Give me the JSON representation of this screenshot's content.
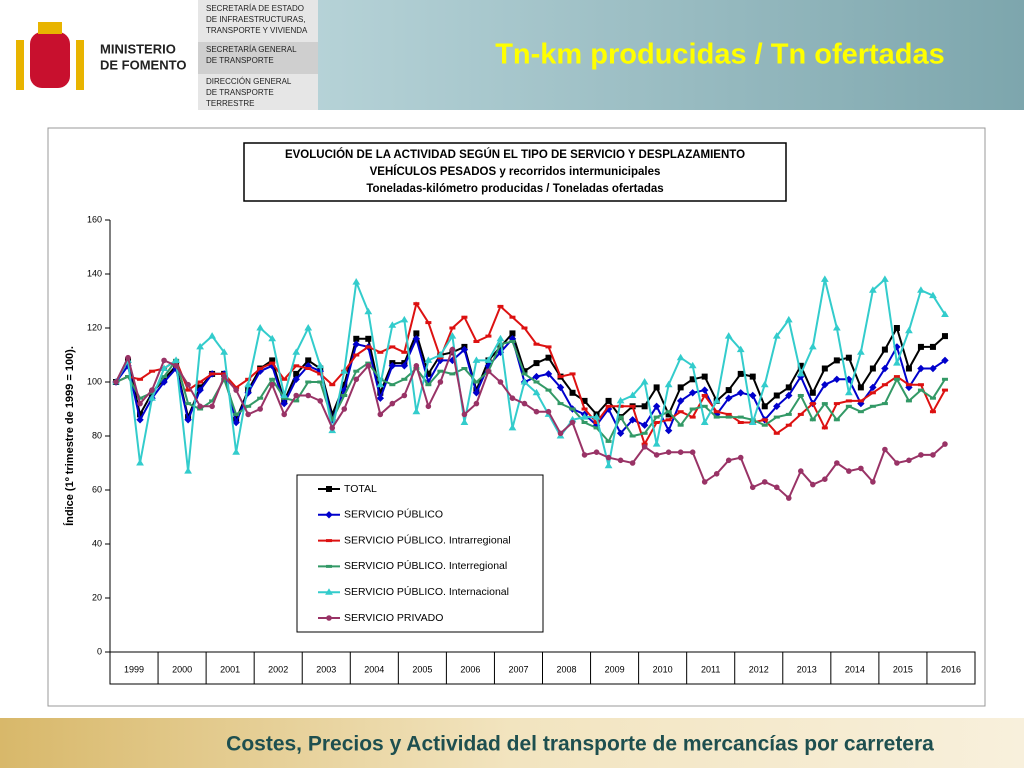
{
  "header": {
    "ministry": [
      "MINISTERIO",
      "DE FOMENTO"
    ],
    "offices": [
      [
        "SECRETARÍA DE ESTADO",
        "DE INFRAESTRUCTURAS,",
        "TRANSPORTE Y VIVIENDA"
      ],
      [
        "SECRETARÍA GENERAL",
        "DE TRANSPORTE"
      ],
      [
        "DIRECCIÓN GENERAL",
        "DE TRANSPORTE",
        "TERRESTRE"
      ]
    ],
    "title": "Tn-km producidas / Tn ofertadas"
  },
  "footer": "Costes, Precios y Actividad del transporte de mercancías por carretera",
  "chart_data": {
    "type": "line",
    "title": [
      "EVOLUCIÓN DE LA ACTIVIDAD SEGÚN EL TIPO DE SERVICIO Y DESPLAZAMIENTO",
      "VEHÍCULOS PESADOS y recorridos intermunicipales",
      "Toneladas-kilómetro producidas / Toneladas ofertadas"
    ],
    "y_label": "Índice (1º trimestre de 1999 = 100).",
    "categories": [
      "1999",
      null,
      null,
      null,
      "2000",
      null,
      null,
      null,
      "2001",
      null,
      null,
      null,
      "2002",
      null,
      null,
      null,
      "2003",
      null,
      null,
      null,
      "2004",
      null,
      null,
      null,
      "2005",
      null,
      null,
      null,
      "2006",
      null,
      null,
      null,
      "2007",
      null,
      null,
      null,
      "2008",
      null,
      null,
      null,
      "2009",
      null,
      null,
      null,
      "2010",
      null,
      null,
      null,
      "2011",
      null,
      null,
      null,
      "2012",
      null,
      null,
      null,
      "2013",
      null,
      null,
      null,
      "2014",
      null,
      null,
      null,
      "2015",
      null,
      null,
      null,
      "2016",
      null
    ],
    "ylim": [
      0,
      160
    ],
    "yticks": [
      0,
      20,
      40,
      60,
      80,
      100,
      120,
      140,
      160
    ],
    "series": [
      {
        "name": "TOTAL",
        "color": "#000000",
        "marker": "square",
        "values": [
          100,
          108,
          88,
          96,
          101,
          106,
          87,
          98,
          103,
          103,
          86,
          97,
          105,
          108,
          93,
          103,
          108,
          105,
          88,
          99,
          116,
          116,
          96,
          107,
          107,
          118,
          103,
          110,
          111,
          113,
          97,
          108,
          113,
          118,
          104,
          107,
          109,
          102,
          96,
          93,
          88,
          93,
          87,
          91,
          91,
          98,
          88,
          98,
          101,
          102,
          93,
          97,
          103,
          102,
          91,
          95,
          98,
          106,
          96,
          105,
          108,
          109,
          98,
          105,
          112,
          120,
          105,
          113,
          113,
          117
        ]
      },
      {
        "name": "SERVICIO PÚBLICO",
        "color": "#0000cc",
        "marker": "diamond",
        "values": [
          100,
          106,
          86,
          94,
          100,
          105,
          86,
          97,
          103,
          103,
          85,
          96,
          104,
          106,
          92,
          101,
          106,
          104,
          86,
          97,
          114,
          113,
          94,
          106,
          106,
          116,
          100,
          108,
          108,
          112,
          96,
          106,
          111,
          116,
          100,
          102,
          103,
          98,
          90,
          88,
          84,
          90,
          81,
          86,
          84,
          91,
          82,
          93,
          96,
          97,
          88,
          94,
          96,
          95,
          86,
          91,
          95,
          102,
          92,
          99,
          101,
          101,
          92,
          98,
          105,
          113,
          98,
          105,
          105,
          108
        ]
      },
      {
        "name": "SERVICIO PÚBLICO. Intrarregional",
        "color": "#dd1111",
        "marker": "dash",
        "values": [
          100,
          102,
          101,
          104,
          105,
          108,
          97,
          100,
          103,
          103,
          98,
          101,
          105,
          107,
          101,
          106,
          105,
          103,
          99,
          104,
          110,
          113,
          111,
          113,
          111,
          129,
          122,
          109,
          120,
          124,
          115,
          117,
          128,
          124,
          120,
          114,
          113,
          102,
          103,
          90,
          85,
          91,
          91,
          91,
          77,
          85,
          86,
          89,
          87,
          95,
          89,
          88,
          85,
          85,
          86,
          81,
          84,
          88,
          92,
          83,
          92,
          93,
          93,
          96,
          99,
          102,
          99,
          99,
          89,
          97
        ]
      },
      {
        "name": "SERVICIO PÚBLICO. Interregional",
        "color": "#339966",
        "marker": "dash",
        "values": [
          100,
          102,
          94,
          96,
          102,
          108,
          92,
          90,
          93,
          101,
          88,
          91,
          94,
          101,
          94,
          93,
          100,
          100,
          86,
          95,
          104,
          107,
          101,
          99,
          101,
          105,
          99,
          104,
          103,
          105,
          100,
          104,
          114,
          115,
          103,
          100,
          97,
          92,
          90,
          85,
          83,
          78,
          87,
          80,
          81,
          87,
          89,
          84,
          90,
          91,
          87,
          87,
          87,
          86,
          84,
          87,
          88,
          95,
          86,
          92,
          86,
          91,
          89,
          91,
          92,
          101,
          93,
          97,
          94,
          101
        ]
      },
      {
        "name": "SERVICIO PÚBLICO. Internacional",
        "color": "#33cccc",
        "marker": "triangle",
        "values": [
          100,
          108,
          70,
          94,
          105,
          108,
          67,
          113,
          117,
          111,
          74,
          99,
          120,
          116,
          95,
          111,
          120,
          106,
          82,
          104,
          137,
          126,
          99,
          121,
          123,
          89,
          108,
          110,
          117,
          85,
          108,
          108,
          116,
          83,
          100,
          96,
          88,
          80,
          86,
          87,
          87,
          69,
          93,
          95,
          100,
          77,
          99,
          109,
          106,
          85,
          93,
          117,
          112,
          85,
          99,
          117,
          123,
          103,
          113,
          138,
          120,
          96,
          111,
          134,
          138,
          107,
          119,
          134,
          132,
          125
        ]
      },
      {
        "name": "SERVICIO PRIVADO",
        "color": "#993366",
        "marker": "circle",
        "values": [
          100,
          109,
          92,
          97,
          108,
          106,
          99,
          91,
          91,
          102,
          97,
          88,
          90,
          99,
          88,
          95,
          95,
          93,
          83,
          90,
          101,
          106,
          88,
          92,
          95,
          106,
          91,
          100,
          112,
          88,
          92,
          104,
          100,
          94,
          92,
          89,
          89,
          81,
          85,
          73,
          74,
          72,
          71,
          70,
          76,
          73,
          74,
          74,
          74,
          63,
          66,
          71,
          72,
          61,
          63,
          61,
          57,
          67,
          62,
          64,
          70,
          67,
          68,
          63,
          75,
          70,
          71,
          73,
          73,
          77
        ]
      }
    ]
  }
}
